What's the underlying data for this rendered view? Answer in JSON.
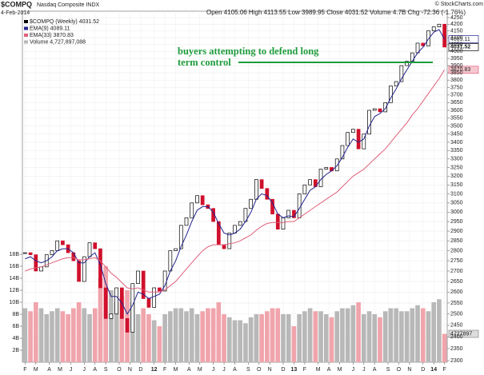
{
  "header": {
    "symbol": "$COMPQ",
    "name": "Nasdaq Composite INDX",
    "date": "4-Feb-2014",
    "quote": "Open 4105.06 High 4113.55 Low 3989.95 Close 4031.52 Volume 4.7B Chg -72.36 (-1.76%)",
    "copyright": "© StockCharts.com"
  },
  "chart_data": {
    "type": "candlestick",
    "annotation": [
      "buyers attempting to defend long",
      "term control"
    ],
    "tag_labels": [
      "4089.11",
      "4031.52",
      "3870.83",
      "4727897"
    ],
    "x": [
      0,
      2,
      4,
      6,
      8,
      10,
      12,
      14,
      16,
      18,
      20,
      22,
      24,
      26,
      28,
      30,
      32,
      34,
      36,
      38,
      40,
      42,
      44,
      46,
      48,
      50,
      52,
      54,
      56,
      58,
      60,
      62,
      64,
      66,
      68,
      70,
      72,
      74,
      76,
      78,
      80,
      82,
      84,
      86,
      88,
      90,
      92,
      94,
      96,
      98,
      100,
      102,
      104,
      106,
      108,
      110,
      112,
      114,
      116,
      118,
      120,
      122,
      124,
      126,
      128,
      130,
      132,
      134,
      136,
      138,
      140,
      142,
      144,
      146,
      148,
      150,
      152,
      154,
      156
    ],
    "series": [
      {
        "name": "$COMPQ (Weekly) 4031.52",
        "color": "#000000",
        "down_color": "#d0102c",
        "values": [
          2790,
          2780,
          2700,
          2720,
          2780,
          2800,
          2850,
          2830,
          2790,
          2750,
          2650,
          2770,
          2840,
          2810,
          2620,
          2480,
          2500,
          2620,
          2480,
          2420,
          2640,
          2700,
          2570,
          2530,
          2620,
          2605,
          2700,
          2800,
          2810,
          2930,
          2970,
          3050,
          3090,
          3040,
          3020,
          2950,
          2830,
          2810,
          2890,
          2930,
          2950,
          3020,
          3070,
          3180,
          3130,
          3070,
          2990,
          2910,
          2970,
          3010,
          2970,
          3100,
          3150,
          3180,
          3140,
          3240,
          3250,
          3230,
          3300,
          3380,
          3460,
          3480,
          3360,
          3450,
          3600,
          3610,
          3590,
          3650,
          3760,
          3790,
          3900,
          3930,
          3990,
          4060,
          4040,
          4150,
          4180,
          4200,
          4031.52
        ]
      },
      {
        "name": "EMA(9) 4089.11",
        "color": "#23238e",
        "values": [
          2760,
          2770,
          2750,
          2740,
          2750,
          2770,
          2800,
          2810,
          2810,
          2790,
          2740,
          2740,
          2770,
          2790,
          2730,
          2640,
          2580,
          2580,
          2550,
          2500,
          2540,
          2600,
          2590,
          2570,
          2580,
          2590,
          2630,
          2700,
          2750,
          2820,
          2880,
          2950,
          3010,
          3030,
          3030,
          3000,
          2940,
          2890,
          2880,
          2890,
          2910,
          2950,
          3000,
          3070,
          3100,
          3090,
          3050,
          2990,
          2970,
          2980,
          2975,
          3020,
          3070,
          3120,
          3140,
          3180,
          3210,
          3230,
          3260,
          3310,
          3370,
          3420,
          3400,
          3420,
          3500,
          3560,
          3580,
          3610,
          3680,
          3740,
          3810,
          3870,
          3930,
          3990,
          4030,
          4090,
          4140,
          4160,
          4089.11
        ]
      },
      {
        "name": "EMA(33) 3870.83",
        "color": "#e0607a",
        "values": [
          2700,
          2710,
          2715,
          2720,
          2730,
          2740,
          2750,
          2760,
          2765,
          2765,
          2755,
          2755,
          2760,
          2765,
          2750,
          2720,
          2690,
          2670,
          2645,
          2620,
          2615,
          2620,
          2610,
          2600,
          2600,
          2600,
          2610,
          2630,
          2650,
          2680,
          2710,
          2740,
          2770,
          2800,
          2820,
          2830,
          2830,
          2830,
          2835,
          2840,
          2850,
          2865,
          2880,
          2905,
          2925,
          2940,
          2945,
          2945,
          2945,
          2950,
          2950,
          2970,
          2990,
          3010,
          3030,
          3050,
          3070,
          3090,
          3110,
          3140,
          3170,
          3200,
          3220,
          3240,
          3270,
          3300,
          3330,
          3360,
          3400,
          3440,
          3480,
          3520,
          3570,
          3610,
          3660,
          3710,
          3760,
          3810,
          3870.83
        ]
      },
      {
        "name": "Volume 4,727,897,088",
        "axis": "y2",
        "color": "#b8b8b8",
        "down_color": "#f0a4ac",
        "values": [
          9,
          8.5,
          10,
          9,
          8,
          8.5,
          9,
          8.5,
          8,
          9,
          10,
          9,
          8,
          9,
          14,
          16,
          12,
          10,
          11,
          12,
          10,
          8,
          9,
          8,
          7,
          6,
          8,
          8.5,
          9,
          9,
          8.5,
          9,
          8,
          8.5,
          9,
          9,
          10,
          8,
          7.5,
          7,
          7,
          6.5,
          7.5,
          8,
          8,
          8.5,
          9,
          9,
          8,
          8,
          6,
          8,
          8.5,
          9,
          8.5,
          8.5,
          8,
          7.5,
          8.5,
          9,
          9,
          9.5,
          10,
          8,
          8.5,
          8,
          7.5,
          8.5,
          9,
          9,
          8.5,
          8.5,
          9,
          9.5,
          9,
          8.5,
          10,
          10.5,
          4.73
        ]
      }
    ],
    "xlim": [
      -1,
      157
    ],
    "xticks": [
      {
        "value": 0,
        "label": "F"
      },
      {
        "value": 4,
        "label": "M"
      },
      {
        "value": 9,
        "label": "A"
      },
      {
        "value": 13,
        "label": "M"
      },
      {
        "value": 17,
        "label": "J"
      },
      {
        "value": 22,
        "label": "J"
      },
      {
        "value": 26,
        "label": "A"
      },
      {
        "value": 30,
        "label": "S"
      },
      {
        "value": 35,
        "label": "O"
      },
      {
        "value": 39,
        "label": "N"
      },
      {
        "value": 43,
        "label": "D"
      },
      {
        "value": 48,
        "label": "12"
      },
      {
        "value": 52,
        "label": "F"
      },
      {
        "value": 56,
        "label": "M"
      },
      {
        "value": 61,
        "label": "A"
      },
      {
        "value": 65,
        "label": "M"
      },
      {
        "value": 70,
        "label": "J"
      },
      {
        "value": 74,
        "label": "J"
      },
      {
        "value": 78,
        "label": "A"
      },
      {
        "value": 83,
        "label": "S"
      },
      {
        "value": 87,
        "label": "O"
      },
      {
        "value": 91,
        "label": "N"
      },
      {
        "value": 96,
        "label": "D"
      },
      {
        "value": 100,
        "label": "13"
      },
      {
        "value": 104,
        "label": "F"
      },
      {
        "value": 109,
        "label": "M"
      },
      {
        "value": 113,
        "label": "A"
      },
      {
        "value": 117,
        "label": "M"
      },
      {
        "value": 122,
        "label": "J"
      },
      {
        "value": 126,
        "label": "J"
      },
      {
        "value": 130,
        "label": "A"
      },
      {
        "value": 135,
        "label": "S"
      },
      {
        "value": 139,
        "label": "O"
      },
      {
        "value": 143,
        "label": "N"
      },
      {
        "value": 148,
        "label": "D"
      },
      {
        "value": 152,
        "label": "14"
      },
      {
        "value": 156,
        "label": "F"
      }
    ],
    "ylim": [
      2300,
      4250
    ],
    "log_scale": true,
    "yticks": [
      2300,
      2350,
      2400,
      2450,
      2500,
      2550,
      2600,
      2650,
      2700,
      2750,
      2800,
      2850,
      2900,
      2950,
      3000,
      3050,
      3100,
      3150,
      3200,
      3250,
      3300,
      3350,
      3400,
      3450,
      3500,
      3550,
      3600,
      3650,
      3700,
      3750,
      3800,
      3850,
      3900,
      3950,
      4000,
      4050,
      4100,
      4150,
      4200,
      4250
    ],
    "y2lim": [
      0,
      20
    ],
    "y2ticks": [
      {
        "value": 2,
        "label": "2B"
      },
      {
        "value": 4,
        "label": "4B"
      },
      {
        "value": 6,
        "label": "6B"
      },
      {
        "value": 8,
        "label": "8B"
      },
      {
        "value": 10,
        "label": "10B"
      },
      {
        "value": 12,
        "label": "12B"
      },
      {
        "value": 14,
        "label": "14B"
      },
      {
        "value": 16,
        "label": "16B"
      },
      {
        "value": 18,
        "label": "18B"
      }
    ],
    "grid": true
  }
}
